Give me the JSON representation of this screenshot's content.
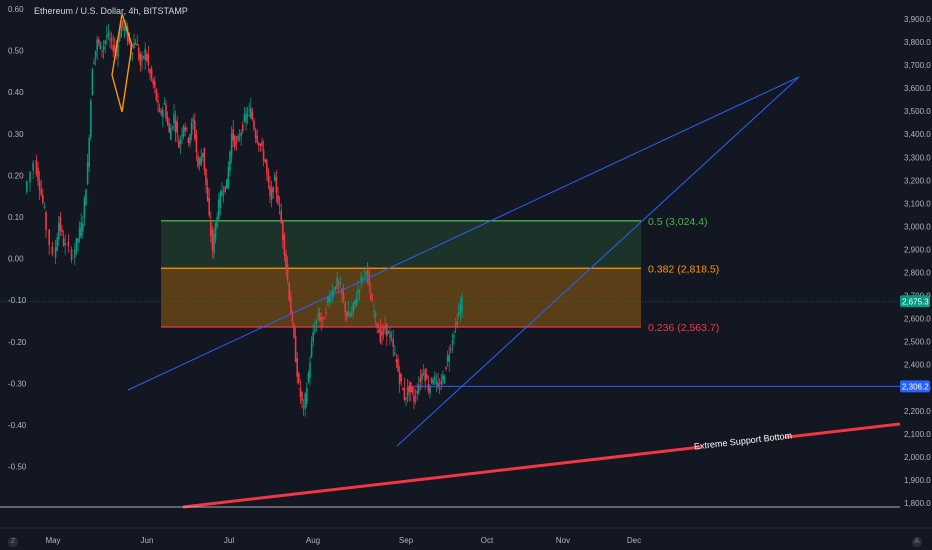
{
  "header": {
    "title": "Ethereum / U.S. Dollar, 4h, BITSTAMP"
  },
  "chart_data": {
    "type": "candlestick",
    "title": "Ethereum / U.S. Dollar, 4h, BITSTAMP",
    "right_axis": {
      "ticks": [
        "3,900.0",
        "3,800.0",
        "3,700.0",
        "3,600.0",
        "3,500.0",
        "3,400.0",
        "3,300.0",
        "3,200.0",
        "3,100.0",
        "3,000.0",
        "2,900.0",
        "2,800.0",
        "2,700.0",
        "2,600.0",
        "2,500.0",
        "2,400.0",
        "2,300.0",
        "2,200.0",
        "2,100.0",
        "2,000.0",
        "1,900.0",
        "1,800.0"
      ],
      "ylim": [
        1800,
        3900
      ]
    },
    "left_axis": {
      "ticks": [
        "0.60",
        "0.50",
        "0.40",
        "0.30",
        "0.20",
        "0.10",
        "0.00",
        "-0.10",
        "-0.20",
        "-0.30",
        "-0.40",
        "-0.50"
      ]
    },
    "x_ticks": [
      "May",
      "Jun",
      "Jul",
      "Aug",
      "Sep",
      "Oct",
      "Nov",
      "Dec"
    ],
    "price_path": [
      [
        0,
        3150
      ],
      [
        2,
        3280
      ],
      [
        3,
        3180
      ],
      [
        4,
        3060
      ],
      [
        6,
        2860
      ],
      [
        7,
        3020
      ],
      [
        8,
        2930
      ],
      [
        10,
        2880
      ],
      [
        11,
        2950
      ],
      [
        12,
        3030
      ],
      [
        13,
        3260
      ],
      [
        14,
        3700
      ],
      [
        15,
        3800
      ],
      [
        16,
        3770
      ],
      [
        17,
        3830
      ],
      [
        18,
        3790
      ],
      [
        19,
        3760
      ],
      [
        20,
        3870
      ],
      [
        21,
        3850
      ],
      [
        22,
        3760
      ],
      [
        23,
        3810
      ],
      [
        24,
        3700
      ],
      [
        25,
        3760
      ],
      [
        26,
        3660
      ],
      [
        27,
        3590
      ],
      [
        28,
        3480
      ],
      [
        29,
        3530
      ],
      [
        30,
        3400
      ],
      [
        31,
        3480
      ],
      [
        32,
        3350
      ],
      [
        33,
        3450
      ],
      [
        34,
        3380
      ],
      [
        35,
        3460
      ],
      [
        36,
        3260
      ],
      [
        37,
        3330
      ],
      [
        38,
        3100
      ],
      [
        39,
        2900
      ],
      [
        40,
        3060
      ],
      [
        41,
        3160
      ],
      [
        42,
        3180
      ],
      [
        43,
        3400
      ],
      [
        44,
        3350
      ],
      [
        45,
        3420
      ],
      [
        46,
        3480
      ],
      [
        47,
        3500
      ],
      [
        48,
        3400
      ],
      [
        49,
        3350
      ],
      [
        50,
        3280
      ],
      [
        51,
        3120
      ],
      [
        52,
        3200
      ],
      [
        53,
        3070
      ],
      [
        54,
        2900
      ],
      [
        55,
        2700
      ],
      [
        56,
        2500
      ],
      [
        57,
        2300
      ],
      [
        58,
        2200
      ],
      [
        59,
        2360
      ],
      [
        60,
        2540
      ],
      [
        61,
        2620
      ],
      [
        62,
        2580
      ],
      [
        63,
        2680
      ],
      [
        64,
        2720
      ],
      [
        65,
        2760
      ],
      [
        66,
        2700
      ],
      [
        67,
        2610
      ],
      [
        68,
        2620
      ],
      [
        69,
        2700
      ],
      [
        70,
        2770
      ],
      [
        71,
        2820
      ],
      [
        72,
        2680
      ],
      [
        73,
        2600
      ],
      [
        74,
        2520
      ],
      [
        75,
        2560
      ],
      [
        76,
        2520
      ],
      [
        77,
        2440
      ],
      [
        78,
        2340
      ],
      [
        79,
        2260
      ],
      [
        80,
        2300
      ],
      [
        81,
        2250
      ],
      [
        82,
        2320
      ],
      [
        83,
        2380
      ],
      [
        84,
        2300
      ],
      [
        85,
        2350
      ],
      [
        86,
        2290
      ],
      [
        87,
        2340
      ],
      [
        88,
        2430
      ],
      [
        89,
        2520
      ],
      [
        90,
        2600
      ],
      [
        91,
        2680
      ]
    ],
    "fib_levels": [
      {
        "label": "0.5 (3,024.4)",
        "price": 3024.4,
        "color": "#4caf50"
      },
      {
        "label": "0.382 (2,818.5)",
        "price": 2818.5,
        "color": "#ff9800"
      },
      {
        "label": "0.236 (2,563.7)",
        "price": 2563.7,
        "color": "#f23645"
      }
    ],
    "price_tags": [
      {
        "label": "2,675.3",
        "price": 2675.3,
        "color": "#089981"
      },
      {
        "label": "2,306.2",
        "price": 2306.2,
        "color": "#2962ff"
      }
    ],
    "annotations": [
      {
        "text": "Extreme Support Bottom",
        "color": "#f23645"
      }
    ],
    "colors": {
      "up": "#089981",
      "down": "#f23645",
      "trendline": "#2962ff",
      "background": "#131722"
    }
  },
  "icons": {
    "bottom_left": "tradingview-logo-icon",
    "bottom_right": "auto-scale-icon"
  },
  "corner_labels": {
    "bottom_left": "Z",
    "bottom_right": "A"
  }
}
